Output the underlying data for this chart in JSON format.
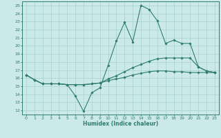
{
  "title": "",
  "xlabel": "Humidex (Indice chaleur)",
  "ylabel": "",
  "xlim": [
    -0.5,
    23.5
  ],
  "ylim": [
    11.5,
    25.5
  ],
  "xticks": [
    0,
    1,
    2,
    3,
    4,
    5,
    6,
    7,
    8,
    9,
    10,
    11,
    12,
    13,
    14,
    15,
    16,
    17,
    18,
    19,
    20,
    21,
    22,
    23
  ],
  "yticks": [
    12,
    13,
    14,
    15,
    16,
    17,
    18,
    19,
    20,
    21,
    22,
    23,
    24,
    25
  ],
  "bg_color": "#cce9e9",
  "grid_color": "#aad4d4",
  "line_color": "#2e7d6e",
  "line1_y": [
    16.4,
    15.8,
    15.3,
    15.3,
    15.3,
    15.2,
    13.8,
    11.9,
    14.2,
    14.8,
    17.6,
    20.6,
    22.9,
    20.5,
    25.0,
    24.5,
    23.1,
    20.3,
    20.7,
    20.3,
    20.3,
    17.4,
    16.9,
    16.7
  ],
  "line2_y": [
    16.4,
    15.8,
    15.3,
    15.3,
    15.3,
    15.2,
    15.2,
    15.2,
    15.3,
    15.4,
    15.9,
    16.3,
    16.8,
    17.3,
    17.7,
    18.1,
    18.4,
    18.5,
    18.5,
    18.5,
    18.5,
    17.4,
    16.9,
    16.7
  ],
  "line3_y": [
    16.4,
    15.8,
    15.3,
    15.3,
    15.3,
    15.2,
    15.2,
    15.2,
    15.3,
    15.4,
    15.7,
    15.9,
    16.1,
    16.4,
    16.6,
    16.8,
    16.9,
    16.9,
    16.8,
    16.8,
    16.7,
    16.7,
    16.7,
    16.7
  ]
}
